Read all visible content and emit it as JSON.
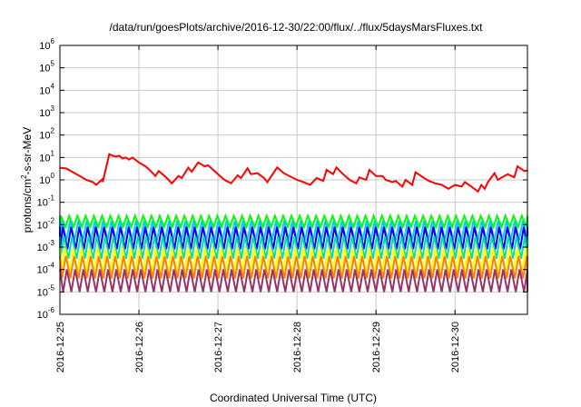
{
  "chart_data": {
    "type": "line",
    "title": "/data/run/goesPlots/archive/2016-12-30/22:00/flux/../flux/5daysMarsFluxes.txt",
    "xlabel": "Coordinated Universal Time (UTC)",
    "ylabel": {
      "prefix": "protons/cm",
      "sup": "2",
      "suffix": "-s-sr-MeV"
    },
    "yscale": "log",
    "ylim": [
      1e-06,
      1000000.0
    ],
    "xlim": [
      "2016-12-25T00:00",
      "2016-12-30T22:00"
    ],
    "yticks": [
      {
        "value": 1e-06,
        "base": "10",
        "exp": "-6"
      },
      {
        "value": 1e-05,
        "base": "10",
        "exp": "-5"
      },
      {
        "value": 0.0001,
        "base": "10",
        "exp": "-4"
      },
      {
        "value": 0.001,
        "base": "10",
        "exp": "-3"
      },
      {
        "value": 0.01,
        "base": "10",
        "exp": "-2"
      },
      {
        "value": 0.1,
        "base": "10",
        "exp": "-1"
      },
      {
        "value": 1,
        "base": "10",
        "exp": "0"
      },
      {
        "value": 10,
        "base": "10",
        "exp": "1"
      },
      {
        "value": 100,
        "base": "10",
        "exp": "2"
      },
      {
        "value": 1000,
        "base": "10",
        "exp": "3"
      },
      {
        "value": 10000,
        "base": "10",
        "exp": "4"
      },
      {
        "value": 100000,
        "base": "10",
        "exp": "5"
      },
      {
        "value": 1000000,
        "base": "10",
        "exp": "6"
      }
    ],
    "xticks": [
      {
        "x": "2016-12-25T00:00",
        "label": "2016-12-25"
      },
      {
        "x": "2016-12-26T00:00",
        "label": "2016-12-26"
      },
      {
        "x": "2016-12-27T00:00",
        "label": "2016-12-27"
      },
      {
        "x": "2016-12-28T00:00",
        "label": "2016-12-28"
      },
      {
        "x": "2016-12-29T00:00",
        "label": "2016-12-29"
      },
      {
        "x": "2016-12-30T00:00",
        "label": "2016-12-30"
      }
    ],
    "grid": true,
    "series": [
      {
        "color": "#ff0000",
        "x": [
          "2016-12-25T00:00",
          "2016-12-25T02:00",
          "2016-12-25T04:00",
          "2016-12-25T06:00",
          "2016-12-25T08:00",
          "2016-12-25T10:00",
          "2016-12-25T11:00",
          "2016-12-25T13:00",
          "2016-12-25T13:01",
          "2016-12-25T15:00",
          "2016-12-25T16:00",
          "2016-12-25T17:00",
          "2016-12-25T18:00",
          "2016-12-25T19:00",
          "2016-12-25T20:00",
          "2016-12-25T21:00",
          "2016-12-25T22:00",
          "2016-12-26T00:00",
          "2016-12-26T02:00",
          "2016-12-26T03:00",
          "2016-12-26T05:00",
          "2016-12-26T06:00",
          "2016-12-26T08:00",
          "2016-12-26T09:00",
          "2016-12-26T10:00",
          "2016-12-26T12:00",
          "2016-12-26T13:00",
          "2016-12-26T15:00",
          "2016-12-26T16:00",
          "2016-12-26T18:00",
          "2016-12-26T20:00",
          "2016-12-26T21:00",
          "2016-12-27T00:00",
          "2016-12-27T02:00",
          "2016-12-27T04:00",
          "2016-12-27T06:00",
          "2016-12-27T07:00",
          "2016-12-27T09:00",
          "2016-12-27T10:00",
          "2016-12-27T12:00",
          "2016-12-27T14:00",
          "2016-12-27T15:00",
          "2016-12-27T18:00",
          "2016-12-27T20:00",
          "2016-12-28T00:00",
          "2016-12-28T02:00",
          "2016-12-28T04:00",
          "2016-12-28T06:00",
          "2016-12-28T08:00",
          "2016-12-28T09:00",
          "2016-12-28T11:00",
          "2016-12-28T12:00",
          "2016-12-28T14:00",
          "2016-12-28T16:00",
          "2016-12-28T18:00",
          "2016-12-28T19:00",
          "2016-12-28T21:00",
          "2016-12-28T22:00",
          "2016-12-29T00:00",
          "2016-12-29T02:00",
          "2016-12-29T03:00",
          "2016-12-29T05:00",
          "2016-12-29T06:00",
          "2016-12-29T08:00",
          "2016-12-29T09:00",
          "2016-12-29T11:00",
          "2016-12-29T12:00",
          "2016-12-29T14:00",
          "2016-12-29T16:00",
          "2016-12-29T18:00",
          "2016-12-29T20:00",
          "2016-12-29T22:00",
          "2016-12-30T00:00",
          "2016-12-30T02:00",
          "2016-12-30T03:00",
          "2016-12-30T05:00",
          "2016-12-30T07:00",
          "2016-12-30T08:00",
          "2016-12-30T09:00",
          "2016-12-30T10:00",
          "2016-12-30T12:00",
          "2016-12-30T13:00",
          "2016-12-30T15:00",
          "2016-12-30T16:00",
          "2016-12-30T18:00",
          "2016-12-30T19:00",
          "2016-12-30T21:00",
          "2016-12-30T22:00"
        ],
        "y": [
          3.5,
          3.2,
          2.2,
          1.5,
          1.0,
          0.8,
          0.6,
          1.1,
          0.8,
          14,
          12,
          11,
          12,
          9,
          10,
          8,
          10,
          6,
          4,
          3,
          1.5,
          2.5,
          1.4,
          1.0,
          0.7,
          1.5,
          1.2,
          3.5,
          2.3,
          6,
          4,
          4.5,
          1.8,
          1.0,
          0.7,
          1.6,
          1.2,
          3.3,
          1.8,
          2.0,
          1.2,
          0.8,
          3.6,
          2.0,
          1.0,
          0.8,
          0.6,
          1.2,
          0.9,
          2.8,
          1.8,
          3.6,
          1.8,
          1.0,
          0.7,
          1.3,
          1.0,
          2.8,
          1.5,
          1.5,
          1.0,
          0.8,
          0.9,
          0.5,
          1.0,
          0.6,
          2.2,
          1.4,
          0.9,
          0.7,
          0.6,
          0.4,
          0.6,
          0.5,
          0.8,
          0.5,
          0.3,
          0.6,
          0.4,
          0.8,
          2.0,
          1.0,
          1.5,
          1.8,
          1.3,
          4,
          2.5,
          2.6
        ]
      },
      {
        "color": "#00ff00",
        "oscillation": {
          "period_hours": 2.5,
          "min": 0.008,
          "max": 0.025
        }
      },
      {
        "color": "#00ccff",
        "oscillation": {
          "period_hours": 2.5,
          "min": 0.002,
          "max": 0.015
        }
      },
      {
        "color": "#0000ff",
        "oscillation": {
          "period_hours": 2.5,
          "min": 0.0008,
          "max": 0.008
        }
      },
      {
        "color": "#00e0a0",
        "oscillation": {
          "period_hours": 2.5,
          "min": 0.0003,
          "max": 0.003
        }
      },
      {
        "color": "#ffff00",
        "oscillation": {
          "period_hours": 2.5,
          "min": 8e-05,
          "max": 0.0009
        }
      },
      {
        "color": "#ff8000",
        "oscillation": {
          "period_hours": 2.5,
          "min": 4e-05,
          "max": 0.0004
        }
      },
      {
        "color": "#993366",
        "oscillation": {
          "period_hours": 2.5,
          "min": 1e-05,
          "max": 0.0001
        }
      }
    ]
  }
}
